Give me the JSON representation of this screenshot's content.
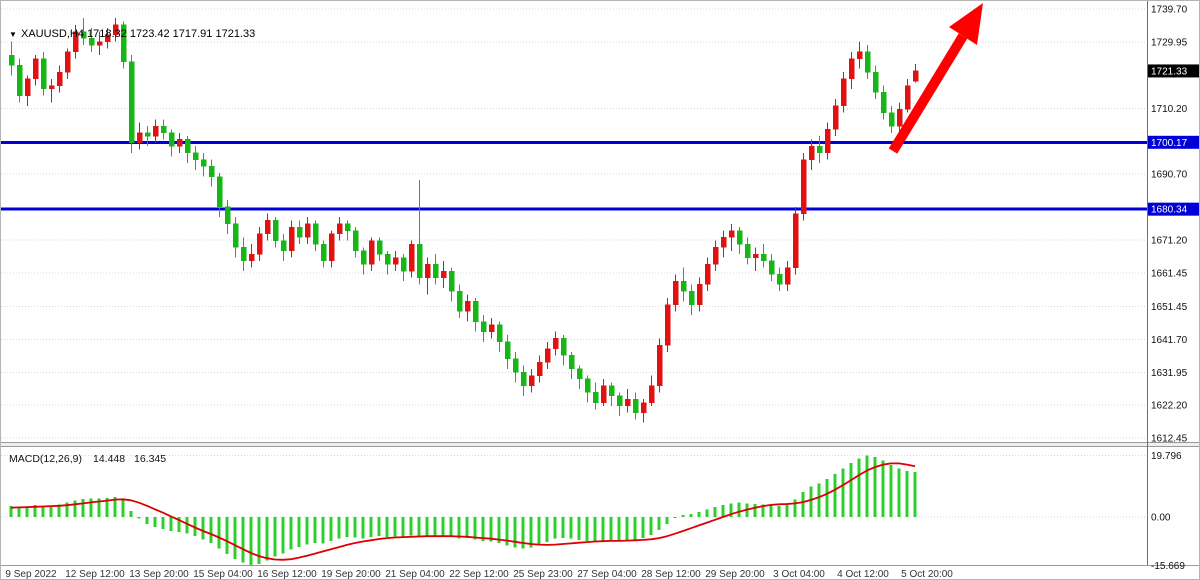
{
  "header": {
    "symbol_title": "XAUUSD,H4 1718.32 1723.42 1717.91 1721.33",
    "symbol_icon": "down-triangle"
  },
  "colors": {
    "background": "#ffffff",
    "bull": "#e31212",
    "bear": "#15b715",
    "level_line": "#0000d6",
    "histogram": "#2fce2f",
    "signal": "#dd0000",
    "arrow": "#ff0000",
    "grid": "#d9d9d9",
    "tag_current_bg": "#000000",
    "tag_level_bg": "#0000d6"
  },
  "macd_label": {
    "name": "MACD(12,26,9)",
    "main_value": "14.448",
    "signal_value": "16.345"
  },
  "chart_data": {
    "type": "candlestick",
    "title": "XAUUSD,H4",
    "timeframe": "H4",
    "current_bar": {
      "open": 1718.32,
      "high": 1723.42,
      "low": 1717.91,
      "close": 1721.33
    },
    "ylim": [
      1611.3,
      1742.1
    ],
    "y_axis_labels": [
      "1739.70",
      "1729.95",
      "1710.20",
      "1690.70",
      "1671.20",
      "1661.45",
      "1651.45",
      "1641.70",
      "1631.95",
      "1622.20",
      "1612.45"
    ],
    "price_tags": {
      "current": "1721.33",
      "levels": [
        "1700.17",
        "1680.34"
      ]
    },
    "levels": [
      1700.17,
      1680.34
    ],
    "x_labels": [
      "9 Sep 2022",
      "12 Sep 12:00",
      "13 Sep 20:00",
      "15 Sep 04:00",
      "16 Sep 12:00",
      "19 Sep 20:00",
      "21 Sep 04:00",
      "22 Sep 12:00",
      "25 Sep 23:00",
      "27 Sep 04:00",
      "28 Sep 12:00",
      "29 Sep 20:00",
      "3 Oct 04:00",
      "4 Oct 12:00",
      "5 Oct 20:00"
    ],
    "candles": [
      [
        1726,
        1730,
        1720,
        1723
      ],
      [
        1723,
        1725,
        1712,
        1714
      ],
      [
        1714,
        1720,
        1711,
        1719
      ],
      [
        1719,
        1726,
        1717,
        1725
      ],
      [
        1725,
        1727,
        1714,
        1716
      ],
      [
        1716,
        1719,
        1712,
        1717
      ],
      [
        1717,
        1723,
        1715,
        1721
      ],
      [
        1721,
        1728,
        1719,
        1727
      ],
      [
        1727,
        1735,
        1725,
        1733
      ],
      [
        1733,
        1737,
        1729,
        1731
      ],
      [
        1731,
        1734,
        1727,
        1729
      ],
      [
        1729,
        1733,
        1726,
        1730
      ],
      [
        1730,
        1734,
        1728,
        1732
      ],
      [
        1732,
        1737,
        1730,
        1735
      ],
      [
        1735,
        1736,
        1722,
        1724
      ],
      [
        1724,
        1726,
        1697,
        1700
      ],
      [
        1700,
        1706,
        1698,
        1703
      ],
      [
        1703,
        1705,
        1699,
        1702
      ],
      [
        1702,
        1707,
        1700,
        1705
      ],
      [
        1705,
        1707,
        1701,
        1703
      ],
      [
        1703,
        1704,
        1696,
        1699
      ],
      [
        1699,
        1703,
        1697,
        1701
      ],
      [
        1701,
        1702,
        1694,
        1697
      ],
      [
        1697,
        1699,
        1692,
        1695
      ],
      [
        1695,
        1697,
        1690,
        1693
      ],
      [
        1693,
        1695,
        1687,
        1690
      ],
      [
        1690,
        1691,
        1678,
        1681
      ],
      [
        1681,
        1683,
        1673,
        1676
      ],
      [
        1676,
        1678,
        1666,
        1669
      ],
      [
        1669,
        1672,
        1662,
        1665
      ],
      [
        1665,
        1670,
        1663,
        1667
      ],
      [
        1667,
        1675,
        1665,
        1673
      ],
      [
        1673,
        1679,
        1671,
        1677
      ],
      [
        1677,
        1678,
        1669,
        1671
      ],
      [
        1671,
        1673,
        1665,
        1668
      ],
      [
        1668,
        1677,
        1666,
        1675
      ],
      [
        1675,
        1677,
        1670,
        1672
      ],
      [
        1672,
        1678,
        1670,
        1676
      ],
      [
        1676,
        1677,
        1668,
        1670
      ],
      [
        1670,
        1671,
        1663,
        1665
      ],
      [
        1665,
        1674,
        1663,
        1673
      ],
      [
        1673,
        1678,
        1671,
        1676
      ],
      [
        1676,
        1677,
        1671,
        1674
      ],
      [
        1674,
        1675,
        1666,
        1668
      ],
      [
        1668,
        1669,
        1661,
        1664
      ],
      [
        1664,
        1672,
        1662,
        1671
      ],
      [
        1671,
        1672,
        1665,
        1667
      ],
      [
        1667,
        1668,
        1661,
        1664
      ],
      [
        1664,
        1668,
        1662,
        1666
      ],
      [
        1666,
        1667,
        1659,
        1662
      ],
      [
        1662,
        1671,
        1660,
        1670
      ],
      [
        1670,
        1689,
        1658,
        1660
      ],
      [
        1660,
        1666,
        1655,
        1664
      ],
      [
        1664,
        1667,
        1658,
        1660
      ],
      [
        1660,
        1665,
        1657,
        1662
      ],
      [
        1662,
        1663,
        1653,
        1656
      ],
      [
        1656,
        1658,
        1648,
        1650
      ],
      [
        1650,
        1655,
        1647,
        1653
      ],
      [
        1653,
        1654,
        1644,
        1647
      ],
      [
        1647,
        1649,
        1641,
        1644
      ],
      [
        1644,
        1648,
        1642,
        1646
      ],
      [
        1646,
        1647,
        1638,
        1641
      ],
      [
        1641,
        1643,
        1633,
        1636
      ],
      [
        1636,
        1638,
        1629,
        1632
      ],
      [
        1632,
        1634,
        1625,
        1628
      ],
      [
        1628,
        1633,
        1626,
        1631
      ],
      [
        1631,
        1637,
        1629,
        1635
      ],
      [
        1635,
        1641,
        1633,
        1639
      ],
      [
        1639,
        1644,
        1637,
        1642
      ],
      [
        1642,
        1643,
        1634,
        1637
      ],
      [
        1637,
        1638,
        1630,
        1633
      ],
      [
        1633,
        1634,
        1627,
        1630
      ],
      [
        1630,
        1631,
        1623,
        1626
      ],
      [
        1626,
        1629,
        1621,
        1623
      ],
      [
        1623,
        1630,
        1622,
        1628
      ],
      [
        1628,
        1629,
        1622,
        1625
      ],
      [
        1625,
        1626,
        1619,
        1622
      ],
      [
        1622,
        1627,
        1620,
        1624
      ],
      [
        1624,
        1626,
        1618,
        1620
      ],
      [
        1620,
        1624,
        1617,
        1623
      ],
      [
        1623,
        1631,
        1622,
        1628
      ],
      [
        1628,
        1642,
        1626,
        1640
      ],
      [
        1640,
        1654,
        1638,
        1652
      ],
      [
        1652,
        1661,
        1650,
        1659
      ],
      [
        1659,
        1663,
        1653,
        1656
      ],
      [
        1656,
        1658,
        1649,
        1652
      ],
      [
        1652,
        1660,
        1650,
        1658
      ],
      [
        1658,
        1666,
        1656,
        1664
      ],
      [
        1664,
        1671,
        1662,
        1669
      ],
      [
        1669,
        1674,
        1666,
        1672
      ],
      [
        1672,
        1676,
        1668,
        1674
      ],
      [
        1674,
        1675,
        1667,
        1670
      ],
      [
        1670,
        1672,
        1664,
        1666
      ],
      [
        1666,
        1669,
        1662,
        1667
      ],
      [
        1667,
        1670,
        1663,
        1665
      ],
      [
        1665,
        1667,
        1659,
        1661
      ],
      [
        1661,
        1663,
        1656,
        1658
      ],
      [
        1658,
        1665,
        1656,
        1663
      ],
      [
        1663,
        1681,
        1661,
        1679
      ],
      [
        1679,
        1697,
        1677,
        1695
      ],
      [
        1695,
        1701,
        1692,
        1699
      ],
      [
        1699,
        1702,
        1694,
        1697
      ],
      [
        1697,
        1706,
        1695,
        1704
      ],
      [
        1704,
        1713,
        1702,
        1711
      ],
      [
        1711,
        1721,
        1709,
        1719
      ],
      [
        1719,
        1727,
        1716,
        1725
      ],
      [
        1725,
        1730,
        1722,
        1727
      ],
      [
        1727,
        1729,
        1719,
        1721
      ],
      [
        1721,
        1723,
        1713,
        1715
      ],
      [
        1715,
        1717,
        1707,
        1709
      ],
      [
        1709,
        1711,
        1703,
        1705
      ],
      [
        1705,
        1712,
        1703,
        1710
      ],
      [
        1710,
        1719,
        1709,
        1717
      ],
      [
        1718.32,
        1723.42,
        1717.91,
        1721.33
      ]
    ],
    "macd": {
      "label": "MACD(12,26,9)",
      "main_last": 14.448,
      "signal_last": 16.345,
      "ylim": [
        -15.669,
        19.796
      ],
      "axis_labels": [
        "19.796",
        "0.00",
        "-15.669"
      ],
      "histogram": [
        3.5,
        3.2,
        3.4,
        3.8,
        3.6,
        3.5,
        4.0,
        4.6,
        5.4,
        5.8,
        5.9,
        6.0,
        6.2,
        6.5,
        5.5,
        2.0,
        -0.5,
        -2.2,
        -3.2,
        -3.8,
        -4.5,
        -4.8,
        -5.4,
        -6.2,
        -7.2,
        -8.4,
        -10.2,
        -12.0,
        -13.5,
        -14.6,
        -15.5,
        -15.2,
        -14.0,
        -12.8,
        -11.8,
        -10.5,
        -9.6,
        -8.8,
        -8.4,
        -8.5,
        -7.8,
        -7.0,
        -6.5,
        -6.6,
        -7.0,
        -6.4,
        -6.2,
        -6.4,
        -6.3,
        -6.6,
        -6.0,
        -6.2,
        -6.0,
        -6.2,
        -6.0,
        -6.4,
        -7.0,
        -6.8,
        -7.2,
        -7.8,
        -7.9,
        -8.4,
        -9.2,
        -9.8,
        -10.2,
        -9.8,
        -9.0,
        -8.0,
        -7.0,
        -6.8,
        -7.0,
        -7.4,
        -7.8,
        -8.0,
        -7.6,
        -7.6,
        -7.8,
        -7.4,
        -7.2,
        -6.8,
        -5.8,
        -4.2,
        -2.2,
        -0.4,
        0.6,
        1.0,
        1.6,
        2.4,
        3.2,
        3.8,
        4.4,
        4.6,
        4.4,
        4.2,
        4.0,
        3.8,
        3.6,
        4.0,
        5.6,
        8.0,
        9.8,
        10.8,
        12.2,
        13.8,
        15.6,
        17.4,
        18.8,
        19.796,
        19.4,
        18.2,
        16.8,
        15.6,
        14.9,
        14.448
      ],
      "signal": [
        3.0,
        3.1,
        3.2,
        3.3,
        3.4,
        3.5,
        3.6,
        3.8,
        4.1,
        4.4,
        4.7,
        5.0,
        5.3,
        5.6,
        5.7,
        5.4,
        4.6,
        3.6,
        2.5,
        1.4,
        0.2,
        -1.0,
        -2.2,
        -3.4,
        -4.5,
        -5.5,
        -6.6,
        -7.8,
        -9.1,
        -10.4,
        -11.6,
        -12.6,
        -13.3,
        -13.7,
        -13.8,
        -13.6,
        -13.1,
        -12.5,
        -11.8,
        -11.1,
        -10.4,
        -9.7,
        -9.0,
        -8.4,
        -7.9,
        -7.5,
        -7.1,
        -6.8,
        -6.6,
        -6.5,
        -6.4,
        -6.3,
        -6.2,
        -6.2,
        -6.2,
        -6.2,
        -6.3,
        -6.4,
        -6.6,
        -6.8,
        -7.0,
        -7.3,
        -7.6,
        -8.0,
        -8.4,
        -8.7,
        -8.9,
        -9.0,
        -8.9,
        -8.7,
        -8.5,
        -8.3,
        -8.1,
        -7.9,
        -7.8,
        -7.7,
        -7.7,
        -7.6,
        -7.5,
        -7.4,
        -7.2,
        -6.8,
        -6.2,
        -5.4,
        -4.5,
        -3.6,
        -2.7,
        -1.8,
        -0.9,
        0.0,
        0.9,
        1.7,
        2.4,
        3.0,
        3.5,
        3.9,
        4.1,
        4.2,
        4.4,
        4.8,
        5.5,
        6.4,
        7.5,
        8.8,
        10.3,
        11.9,
        13.5,
        15.0,
        16.1,
        16.9,
        17.3,
        17.3,
        16.9,
        16.345
      ]
    }
  }
}
